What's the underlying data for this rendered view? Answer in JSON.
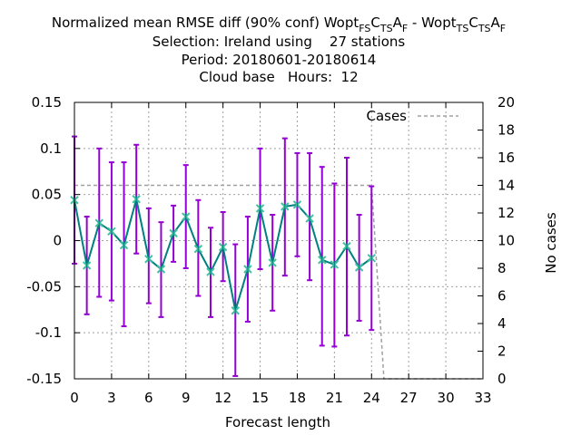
{
  "chart_data": {
    "type": "line",
    "title": {
      "prefix": "Normalized mean RMSE diff (90% conf) Wopt",
      "sub1": "FS",
      "mid1": "C",
      "sub2": "TS",
      "mid2": "A",
      "sub3": "F",
      "sep": " - Wopt",
      "sub4": "TS",
      "mid3": "C",
      "sub5": "TS",
      "mid4": "A",
      "sub6": "F"
    },
    "subtitle_lines": [
      "Selection: Ireland using    27 stations",
      "Period: 20180601-20180614",
      "Cloud base   Hours:  12"
    ],
    "xlabel": "Forecast length",
    "ylabel": "",
    "y2label": "No cases",
    "xlim": [
      0,
      33
    ],
    "ylim": [
      -0.15,
      0.15
    ],
    "y2lim": [
      0,
      20
    ],
    "x_ticks": [
      "0",
      "3",
      "6",
      "9",
      "12",
      "15",
      "18",
      "21",
      "24",
      "27",
      "30",
      "33"
    ],
    "y_ticks": [
      "0.15",
      "0.1",
      "0.05",
      "0",
      "-0.05",
      "-0.1",
      "-0.15"
    ],
    "y2_ticks": [
      "20",
      "18",
      "16",
      "14",
      "12",
      "10",
      "8",
      "6",
      "4",
      "2",
      "0"
    ],
    "grid": true,
    "legend": {
      "label": "Cases",
      "position": "top-right"
    },
    "colors": {
      "line": "#008080",
      "marker": "#40c0a0",
      "errorbar": "#9400d3",
      "cases": "#a0a0a0",
      "grid": "#a0a0a0"
    },
    "series": [
      {
        "x": [
          0,
          1,
          2,
          3,
          4,
          5,
          6,
          7,
          8,
          9,
          10,
          11,
          12,
          13,
          14,
          15,
          16,
          17,
          18,
          19,
          20,
          21,
          22,
          23,
          24
        ],
        "values": [
          0.044,
          -0.027,
          0.019,
          0.01,
          -0.005,
          0.045,
          -0.02,
          -0.031,
          0.008,
          0.026,
          -0.009,
          -0.034,
          -0.007,
          -0.076,
          -0.031,
          0.035,
          -0.024,
          0.037,
          0.039,
          0.024,
          -0.021,
          -0.026,
          -0.006,
          -0.029,
          -0.019
        ],
        "upper": [
          0.113,
          0.026,
          0.1,
          0.085,
          0.085,
          0.104,
          0.035,
          0.02,
          0.038,
          0.082,
          0.044,
          0.014,
          0.031,
          -0.004,
          0.026,
          0.1,
          0.028,
          0.111,
          0.095,
          0.095,
          0.08,
          0.062,
          0.09,
          0.028,
          0.059
        ]
      }
    ],
    "errorbar_lower": [
      -0.025,
      -0.08,
      -0.061,
      -0.065,
      -0.093,
      -0.014,
      -0.068,
      -0.083,
      -0.023,
      -0.03,
      -0.06,
      -0.083,
      -0.044,
      -0.147,
      -0.088,
      -0.031,
      -0.076,
      -0.038,
      -0.017,
      -0.043,
      -0.114,
      -0.115,
      -0.103,
      -0.087,
      -0.097
    ],
    "cases": {
      "x": [
        0,
        24,
        25,
        33
      ],
      "values": [
        14,
        14,
        0,
        0
      ]
    }
  }
}
